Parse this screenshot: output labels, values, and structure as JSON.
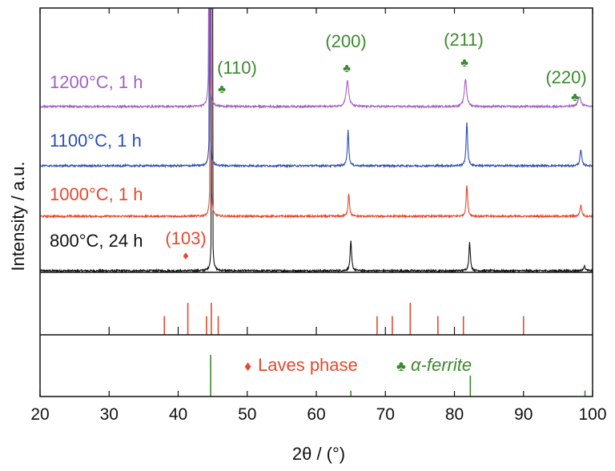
{
  "chart_data": {
    "type": "line",
    "xlabel": "2θ / (°)",
    "ylabel": "Intensity / a.u.",
    "xlim": [
      20,
      100
    ],
    "x_ticks": [
      "20",
      "30",
      "40",
      "50",
      "60",
      "70",
      "80",
      "90",
      "100"
    ],
    "grid": false,
    "series": [
      {
        "label": "800°C, 24 h",
        "color": "#111111",
        "peaks": [
          [
            44.9,
            1.0,
            0.25
          ],
          [
            65.0,
            0.48,
            0.25
          ],
          [
            82.2,
            0.46,
            0.25
          ],
          [
            98.8,
            0.08,
            0.3
          ]
        ]
      },
      {
        "label": "1000°C, 1 h",
        "color": "#e8472d",
        "peaks": [
          [
            44.7,
            1.0,
            0.25
          ],
          [
            64.7,
            0.38,
            0.25
          ],
          [
            81.8,
            0.52,
            0.25
          ],
          [
            98.3,
            0.18,
            0.3
          ]
        ]
      },
      {
        "label": "1100°C, 1 h",
        "color": "#2b4fb4",
        "peaks": [
          [
            44.6,
            1.0,
            0.25
          ],
          [
            64.6,
            0.58,
            0.25
          ],
          [
            81.8,
            0.72,
            0.25
          ],
          [
            98.3,
            0.26,
            0.3
          ]
        ]
      },
      {
        "label": "1200°C, 1 h",
        "color": "#a45ec7",
        "peaks": [
          [
            44.5,
            1.0,
            0.3
          ],
          [
            64.5,
            0.42,
            0.45
          ],
          [
            81.6,
            0.45,
            0.4
          ],
          [
            98.1,
            0.16,
            0.5
          ]
        ]
      }
    ],
    "peak_labels": [
      {
        "text": "(110)",
        "x": 46.8,
        "color": "#3a8a2c",
        "series": 3,
        "marker": "♣"
      },
      {
        "text": "(200)",
        "x": 64.5,
        "color": "#3a8a2c",
        "series": 3,
        "marker": "♣"
      },
      {
        "text": "(211)",
        "x": 81.6,
        "color": "#3a8a2c",
        "series": 3,
        "marker": "♣"
      },
      {
        "text": "(220)",
        "x": 98.1,
        "color": "#3a8a2c",
        "series": 3,
        "marker": "♣"
      },
      {
        "text": "(103)",
        "x": 41.0,
        "color": "#e8472d",
        "series": 0,
        "marker": "♦"
      }
    ],
    "reference_patterns": [
      {
        "name": "Laves phase",
        "marker": "♦",
        "color": "#e8472d",
        "lines": [
          [
            38.0,
            0.35
          ],
          [
            41.4,
            0.6
          ],
          [
            44.1,
            0.35
          ],
          [
            44.8,
            0.6
          ],
          [
            45.8,
            0.35
          ],
          [
            68.8,
            0.35
          ],
          [
            71.0,
            0.35
          ],
          [
            73.6,
            0.6
          ],
          [
            77.6,
            0.35
          ],
          [
            81.3,
            0.35
          ],
          [
            90.0,
            0.35
          ]
        ]
      },
      {
        "name": "α-ferrite",
        "marker": "♣",
        "color": "#3a8a2c",
        "lines": [
          [
            44.7,
            1.0
          ],
          [
            65.0,
            0.14
          ],
          [
            82.3,
            0.5
          ],
          [
            98.9,
            0.14
          ]
        ]
      }
    ],
    "black_ref_ticks": [
      30,
      40,
      50,
      60,
      70,
      80
    ]
  }
}
